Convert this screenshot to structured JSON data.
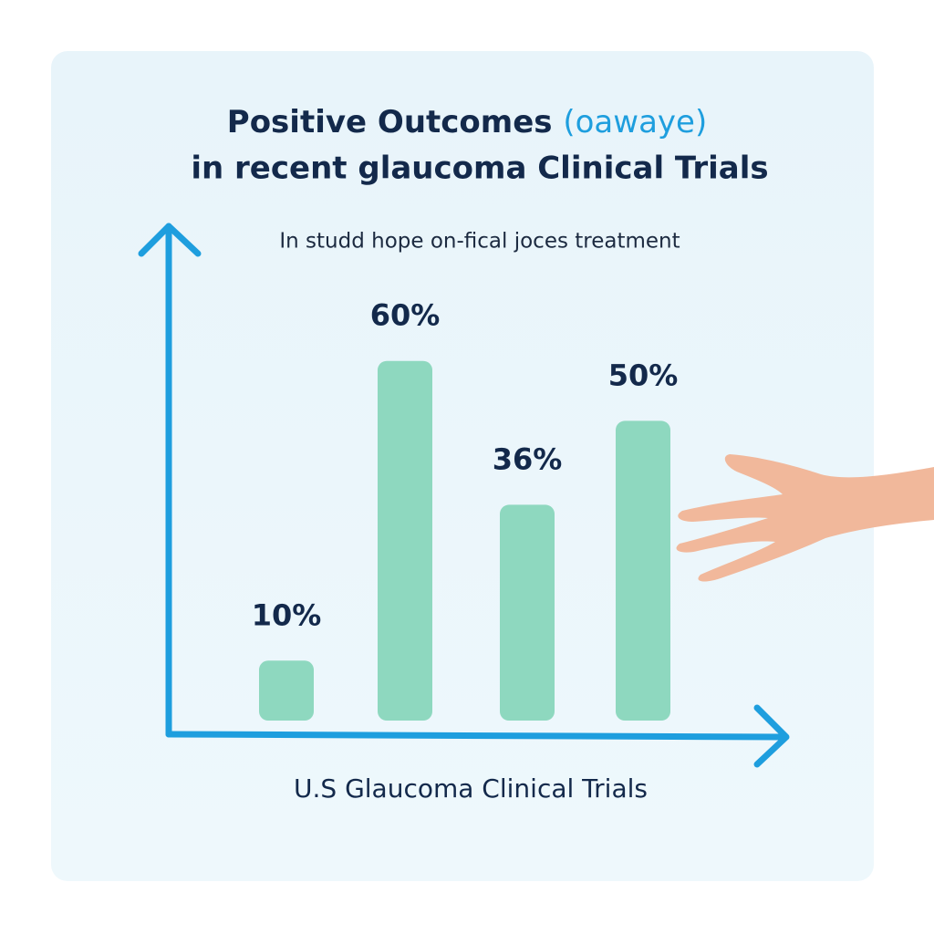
{
  "chart_data": {
    "type": "bar",
    "title": "Positive Outcomes",
    "title_highlight": "(oawaye)",
    "title_line2": "in recent glaucoma Clinical Trials",
    "subtitle": "In studd hope on-fical joces treatment",
    "x_label": "U.S Glaucoma Clinical Trials",
    "categories": [
      null,
      null,
      null,
      null
    ],
    "values": [
      10,
      60,
      36,
      50
    ],
    "value_labels": [
      "10%",
      "60%",
      "36%",
      "50%"
    ],
    "color": "#8ed8bf",
    "axis_color": "#1e9ede",
    "highlight_color": "#1e9ede",
    "ylim": [
      0,
      70
    ]
  }
}
